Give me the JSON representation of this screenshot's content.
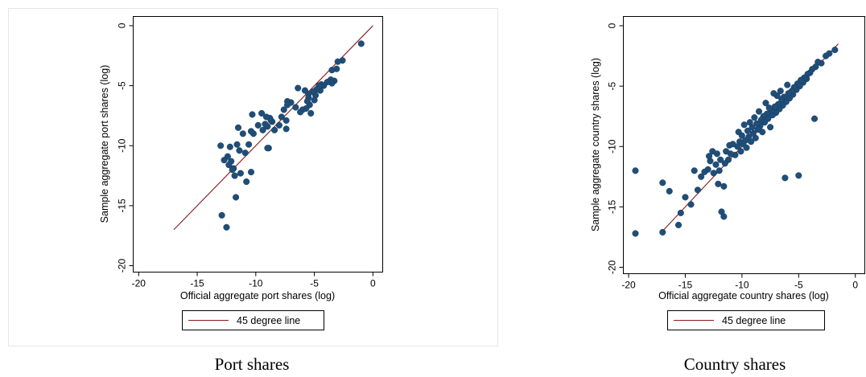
{
  "chart_data": [
    {
      "type": "scatter",
      "caption": "Port shares",
      "xlabel": "Official aggregate port shares (log)",
      "ylabel": "Sample aggregate port shares (log)",
      "xlim": [
        -20.5,
        0.8
      ],
      "ylim": [
        -20.5,
        0.8
      ],
      "xticks": [
        -20,
        -15,
        -10,
        -5,
        0
      ],
      "yticks": [
        0,
        -5,
        -10,
        -15,
        -20
      ],
      "xtick_labels": [
        "-20",
        "-15",
        "-10",
        "-5",
        "0"
      ],
      "ytick_labels": [
        "0",
        "-5",
        "-10",
        "-15",
        "-20"
      ],
      "grid": false,
      "legend_position": "bottom",
      "legend": [
        "45 degree line"
      ],
      "reference_line": {
        "name": "45 degree line",
        "from": [
          -17,
          -17
        ],
        "to": [
          0,
          0
        ],
        "color": "#8b1a1a"
      },
      "marker_color": "#1f4e79",
      "points": [
        [
          -1.0,
          -1.5
        ],
        [
          -2.6,
          -2.9
        ],
        [
          -3.0,
          -3.0
        ],
        [
          -3.1,
          -3.6
        ],
        [
          -3.3,
          -4.6
        ],
        [
          -3.5,
          -3.7
        ],
        [
          -3.5,
          -4.8
        ],
        [
          -3.6,
          -4.5
        ],
        [
          -3.9,
          -4.7
        ],
        [
          -4.2,
          -5.0
        ],
        [
          -4.4,
          -4.9
        ],
        [
          -4.5,
          -5.4
        ],
        [
          -4.6,
          -5.0
        ],
        [
          -4.8,
          -5.3
        ],
        [
          -4.9,
          -5.8
        ],
        [
          -5.0,
          -6.2
        ],
        [
          -5.1,
          -5.5
        ],
        [
          -5.3,
          -7.3
        ],
        [
          -5.4,
          -6.6
        ],
        [
          -5.5,
          -5.7
        ],
        [
          -5.5,
          -6.0
        ],
        [
          -5.6,
          -6.3
        ],
        [
          -5.7,
          -6.9
        ],
        [
          -5.8,
          -5.4
        ],
        [
          -6.0,
          -7.0
        ],
        [
          -6.2,
          -7.2
        ],
        [
          -6.4,
          -5.2
        ],
        [
          -6.6,
          -6.8
        ],
        [
          -7.0,
          -6.4
        ],
        [
          -7.3,
          -6.3
        ],
        [
          -7.3,
          -6.6
        ],
        [
          -7.4,
          -7.9
        ],
        [
          -7.4,
          -8.6
        ],
        [
          -7.6,
          -7.0
        ],
        [
          -7.8,
          -7.6
        ],
        [
          -8.0,
          -8.3
        ],
        [
          -8.4,
          -8.7
        ],
        [
          -8.6,
          -8.0
        ],
        [
          -8.7,
          -7.9
        ],
        [
          -8.8,
          -7.7
        ],
        [
          -8.9,
          -10.2
        ],
        [
          -9.0,
          -10.2
        ],
        [
          -9.0,
          -8.4
        ],
        [
          -9.1,
          -7.6
        ],
        [
          -9.2,
          -8.2
        ],
        [
          -9.4,
          -8.7
        ],
        [
          -9.5,
          -7.3
        ],
        [
          -9.8,
          -8.3
        ],
        [
          -10.2,
          -9.0
        ],
        [
          -10.3,
          -7.4
        ],
        [
          -10.4,
          -8.8
        ],
        [
          -10.4,
          -12.2
        ],
        [
          -10.6,
          -9.9
        ],
        [
          -10.8,
          -13.0
        ],
        [
          -10.9,
          -10.6
        ],
        [
          -11.1,
          -9.0
        ],
        [
          -11.3,
          -12.3
        ],
        [
          -11.4,
          -10.4
        ],
        [
          -11.5,
          -8.5
        ],
        [
          -11.6,
          -9.9
        ],
        [
          -11.7,
          -14.3
        ],
        [
          -11.8,
          -12.5
        ],
        [
          -11.9,
          -11.9
        ],
        [
          -12.0,
          -12.0
        ],
        [
          -12.1,
          -11.3
        ],
        [
          -12.2,
          -10.1
        ],
        [
          -12.3,
          -11.6
        ],
        [
          -12.4,
          -10.9
        ],
        [
          -12.5,
          -16.8
        ],
        [
          -12.7,
          -11.2
        ],
        [
          -12.9,
          -15.8
        ],
        [
          -13.0,
          -10.0
        ]
      ]
    },
    {
      "type": "scatter",
      "caption": "Country shares",
      "xlabel": "Official aggregate country shares (log)",
      "ylabel": "Sample aggregate country shares (log)",
      "xlim": [
        -20.5,
        0.8
      ],
      "ylim": [
        -20.5,
        0.8
      ],
      "xticks": [
        -20,
        -15,
        -10,
        -5,
        0
      ],
      "yticks": [
        0,
        -5,
        -10,
        -15,
        -20
      ],
      "xtick_labels": [
        "-20",
        "-15",
        "-10",
        "-5",
        "0"
      ],
      "ytick_labels": [
        "0",
        "-5",
        "-10",
        "-15",
        "-20"
      ],
      "grid": false,
      "legend_position": "bottom",
      "legend": [
        "45 degree line"
      ],
      "reference_line": {
        "name": "45 degree line",
        "from": [
          -17,
          -17
        ],
        "to": [
          -1.5,
          -1.5
        ],
        "color": "#8b1a1a"
      },
      "marker_color": "#1f4e79",
      "points": [
        [
          -1.8,
          -2.0
        ],
        [
          -2.3,
          -2.3
        ],
        [
          -2.6,
          -2.5
        ],
        [
          -3.0,
          -3.1
        ],
        [
          -3.3,
          -3.0
        ],
        [
          -3.5,
          -3.4
        ],
        [
          -3.6,
          -7.7
        ],
        [
          -3.8,
          -3.6
        ],
        [
          -4.0,
          -3.9
        ],
        [
          -4.2,
          -4.0
        ],
        [
          -4.3,
          -4.4
        ],
        [
          -4.5,
          -4.3
        ],
        [
          -4.6,
          -4.7
        ],
        [
          -4.8,
          -4.5
        ],
        [
          -4.9,
          -5.0
        ],
        [
          -5.0,
          -12.4
        ],
        [
          -5.1,
          -4.8
        ],
        [
          -5.2,
          -5.3
        ],
        [
          -5.4,
          -5.1
        ],
        [
          -5.5,
          -5.7
        ],
        [
          -5.6,
          -5.4
        ],
        [
          -5.8,
          -6.0
        ],
        [
          -5.9,
          -5.6
        ],
        [
          -6.0,
          -4.9
        ],
        [
          -6.1,
          -6.3
        ],
        [
          -6.2,
          -12.6
        ],
        [
          -6.3,
          -5.9
        ],
        [
          -6.4,
          -6.6
        ],
        [
          -6.5,
          -6.1
        ],
        [
          -6.6,
          -5.4
        ],
        [
          -6.7,
          -6.9
        ],
        [
          -6.8,
          -6.5
        ],
        [
          -6.9,
          -5.8
        ],
        [
          -7.0,
          -7.2
        ],
        [
          -7.1,
          -6.7
        ],
        [
          -7.2,
          -5.6
        ],
        [
          -7.3,
          -7.4
        ],
        [
          -7.4,
          -7.0
        ],
        [
          -7.5,
          -8.4
        ],
        [
          -7.6,
          -6.8
        ],
        [
          -7.7,
          -7.7
        ],
        [
          -7.8,
          -7.3
        ],
        [
          -7.9,
          -6.4
        ],
        [
          -8.0,
          -8.0
        ],
        [
          -8.1,
          -7.5
        ],
        [
          -8.2,
          -8.8
        ],
        [
          -8.3,
          -7.8
        ],
        [
          -8.4,
          -8.3
        ],
        [
          -8.5,
          -7.1
        ],
        [
          -8.6,
          -8.6
        ],
        [
          -8.7,
          -8.1
        ],
        [
          -8.8,
          -9.3
        ],
        [
          -8.9,
          -7.6
        ],
        [
          -9.0,
          -8.9
        ],
        [
          -9.1,
          -8.4
        ],
        [
          -9.2,
          -9.6
        ],
        [
          -9.3,
          -8.0
        ],
        [
          -9.4,
          -9.2
        ],
        [
          -9.5,
          -8.7
        ],
        [
          -9.6,
          -10.1
        ],
        [
          -9.7,
          -9.5
        ],
        [
          -9.8,
          -8.2
        ],
        [
          -9.9,
          -9.8
        ],
        [
          -10.0,
          -9.1
        ],
        [
          -10.1,
          -10.4
        ],
        [
          -10.2,
          -9.6
        ],
        [
          -10.3,
          -8.8
        ],
        [
          -10.4,
          -10.0
        ],
        [
          -10.6,
          -10.7
        ],
        [
          -10.8,
          -9.8
        ],
        [
          -11.0,
          -10.6
        ],
        [
          -11.1,
          -9.9
        ],
        [
          -11.2,
          -11.1
        ],
        [
          -11.4,
          -10.4
        ],
        [
          -11.5,
          -11.4
        ],
        [
          -11.6,
          -13.3
        ],
        [
          -11.6,
          -15.8
        ],
        [
          -11.8,
          -15.4
        ],
        [
          -11.9,
          -11.1
        ],
        [
          -12.0,
          -12.0
        ],
        [
          -12.1,
          -13.1
        ],
        [
          -12.2,
          -10.6
        ],
        [
          -12.3,
          -11.5
        ],
        [
          -12.5,
          -12.2
        ],
        [
          -12.6,
          -10.4
        ],
        [
          -12.8,
          -11.2
        ],
        [
          -12.9,
          -10.8
        ],
        [
          -13.0,
          -11.9
        ],
        [
          -13.3,
          -12.1
        ],
        [
          -13.6,
          -12.5
        ],
        [
          -13.9,
          -13.6
        ],
        [
          -14.2,
          -12.0
        ],
        [
          -14.5,
          -14.8
        ],
        [
          -15.0,
          -14.2
        ],
        [
          -15.4,
          -15.5
        ],
        [
          -15.6,
          -16.5
        ],
        [
          -16.4,
          -13.7
        ],
        [
          -17.0,
          -17.1
        ],
        [
          -17.0,
          -13.0
        ],
        [
          -19.4,
          -17.2
        ],
        [
          -19.4,
          -12.0
        ]
      ]
    }
  ]
}
